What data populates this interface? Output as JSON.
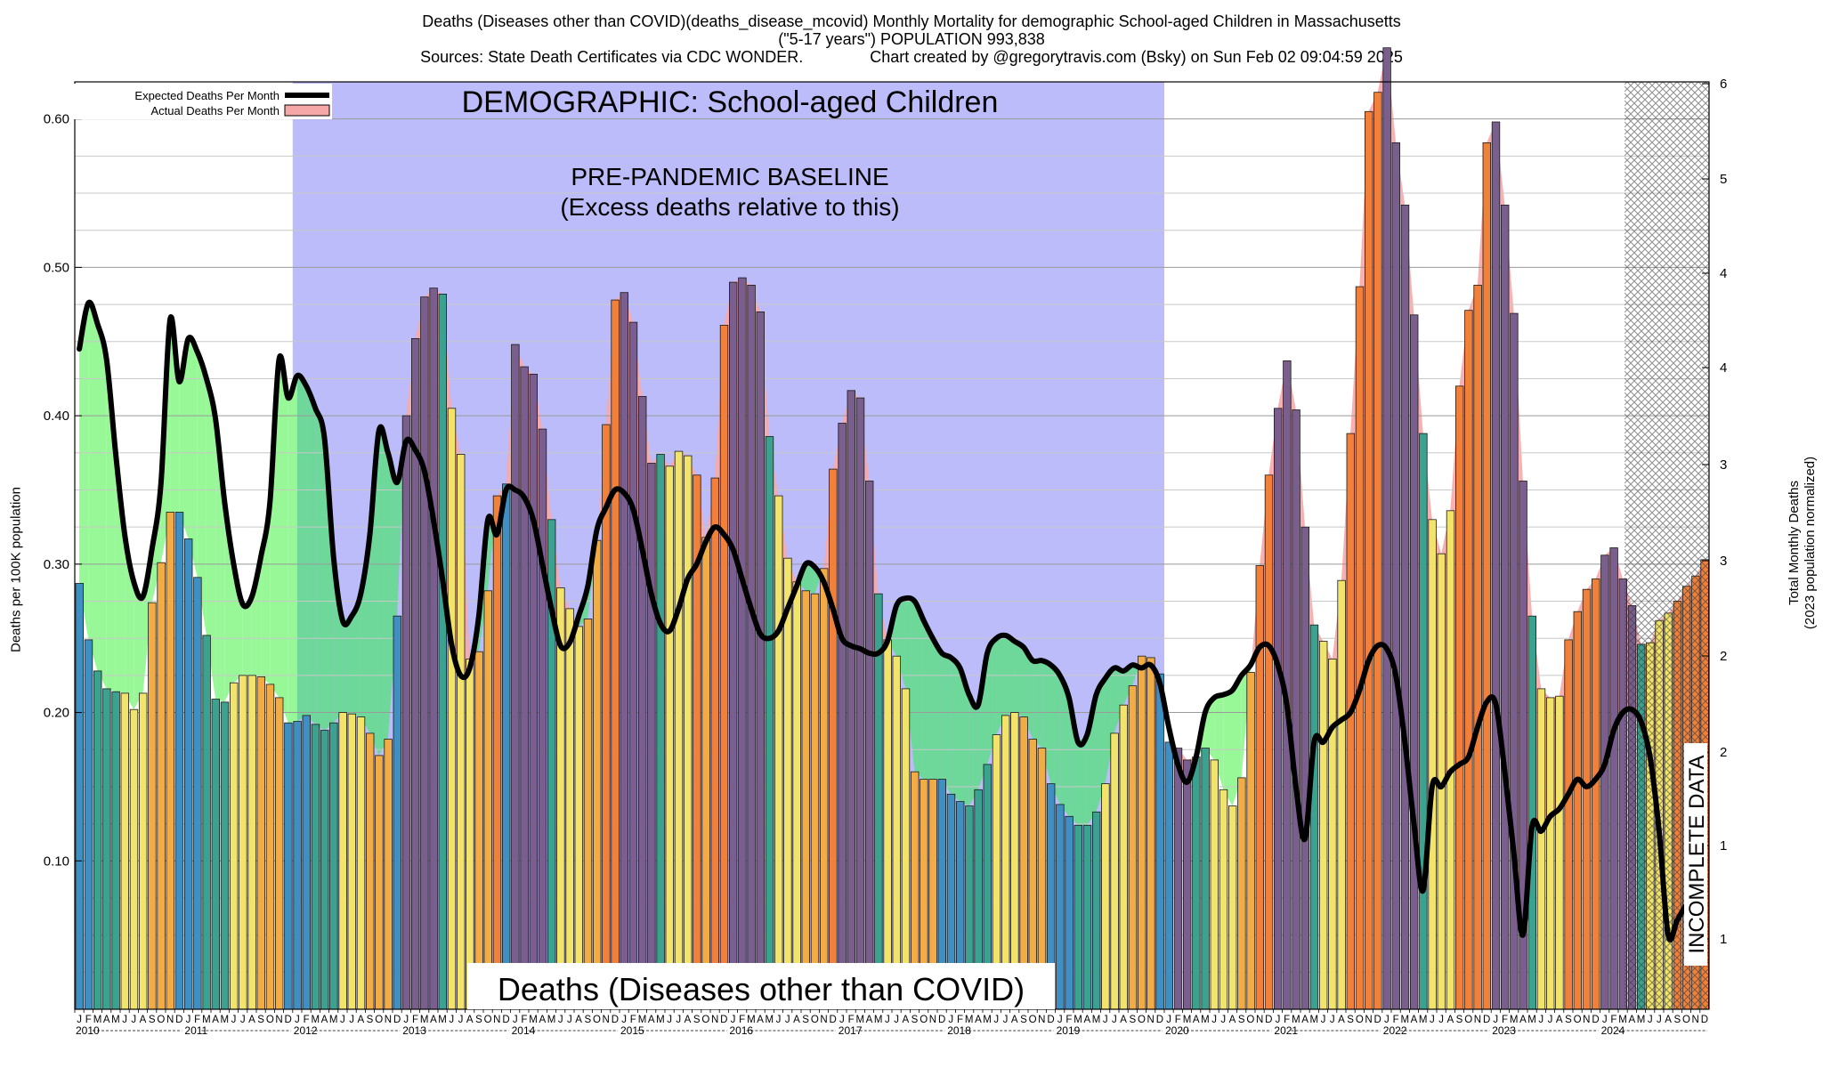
{
  "header": {
    "line1": "Deaths (Diseases other than COVID)(deaths_disease_mcovid) Monthly Mortality for demographic School-aged Children in Massachusetts",
    "line2": "(\"5-17 years\") POPULATION 993,838",
    "line3": "Sources: State Death Certificates via CDC WONDER.               Chart created by @gregorytravis.com (Bsky) on Sun Feb 02 09:04:59 2025"
  },
  "labels": {
    "demographic": "DEMOGRAPHIC: School-aged Children",
    "baseline_line1": "PRE-PANDEMIC BASELINE",
    "baseline_line2": "(Excess deaths relative to this)",
    "bottom_title": "Deaths (Diseases other than COVID)",
    "incomplete": "INCOMPLETE DATA",
    "y_left": "Deaths per 100K population",
    "y_right_line1": "Total Monthly Deaths",
    "y_right_line2": "(2023 population normalized)"
  },
  "legend": {
    "expected": "Expected Deaths Per Month",
    "actual": "Actual Deaths Per Month"
  },
  "colors": {
    "baseline_band": "#bcbcfa",
    "expected_line": "#000000",
    "actual_fill": "#f6a8a8",
    "excess_fill": "#98f898",
    "deficit_fill": "#6ed79a",
    "bar_winter": "#3f8fc3",
    "bar_spring": "#3aa28e",
    "bar_summer": "#f2e36a",
    "bar_fall": "#f2ac46",
    "bar_excess": "#f0803a",
    "bar_overlap": "#7a5f8e"
  },
  "chart_data": {
    "type": "bar",
    "start": "2010-01",
    "end": "2024-12",
    "ylim": [
      0.0,
      0.625
    ],
    "y_left_ticks": [
      "0.10",
      "0.20",
      "0.30",
      "0.40",
      "0.50",
      "0.60"
    ],
    "y_right_ticks": [
      "1",
      "1",
      "2",
      "2",
      "3",
      "3",
      "4",
      "4",
      "5",
      "6"
    ],
    "month_letters": [
      "J",
      "F",
      "M",
      "A",
      "M",
      "J",
      "J",
      "A",
      "S",
      "O",
      "N",
      "D"
    ],
    "years": [
      "2010",
      "2011",
      "2012",
      "2013",
      "2014",
      "2015",
      "2016",
      "2017",
      "2018",
      "2019",
      "2020",
      "2021",
      "2022",
      "2023",
      "2024"
    ],
    "baseline_period": [
      "2012-01",
      "2019-12"
    ],
    "incomplete_period": [
      "2024-04",
      "2024-12"
    ],
    "series": [
      {
        "name": "Actual Deaths Per Month",
        "values": [
          0.287,
          0.249,
          0.228,
          0.216,
          0.214,
          0.213,
          0.202,
          0.213,
          0.274,
          0.301,
          0.335,
          0.335,
          0.317,
          0.291,
          0.252,
          0.209,
          0.207,
          0.22,
          0.225,
          0.225,
          0.224,
          0.219,
          0.21,
          0.193,
          0.194,
          0.198,
          0.192,
          0.188,
          0.193,
          0.2,
          0.199,
          0.197,
          0.186,
          0.171,
          0.182,
          0.265,
          0.4,
          0.452,
          0.48,
          0.486,
          0.482,
          0.405,
          0.374,
          0.236,
          0.241,
          0.282,
          0.346,
          0.354,
          0.448,
          0.433,
          0.428,
          0.391,
          0.33,
          0.284,
          0.27,
          0.258,
          0.263,
          0.316,
          0.394,
          0.478,
          0.483,
          0.463,
          0.413,
          0.368,
          0.374,
          0.366,
          0.376,
          0.373,
          0.36,
          0.318,
          0.358,
          0.461,
          0.49,
          0.493,
          0.488,
          0.47,
          0.386,
          0.346,
          0.304,
          0.288,
          0.282,
          0.28,
          0.297,
          0.364,
          0.395,
          0.417,
          0.412,
          0.356,
          0.28,
          0.249,
          0.238,
          0.216,
          0.16,
          0.155,
          0.155,
          0.155,
          0.145,
          0.14,
          0.137,
          0.148,
          0.165,
          0.185,
          0.198,
          0.2,
          0.197,
          0.182,
          0.176,
          0.152,
          0.138,
          0.13,
          0.124,
          0.124,
          0.133,
          0.152,
          0.186,
          0.205,
          0.218,
          0.238,
          0.237,
          0.226,
          0.18,
          0.176,
          0.168,
          0.17,
          0.176,
          0.168,
          0.148,
          0.137,
          0.156,
          0.227,
          0.299,
          0.36,
          0.405,
          0.437,
          0.404,
          0.325,
          0.259,
          0.248,
          0.236,
          0.289,
          0.388,
          0.487,
          0.605,
          0.618,
          0.648,
          0.584,
          0.542,
          0.468,
          0.388,
          0.33,
          0.307,
          0.336,
          0.42,
          0.471,
          0.488,
          0.584,
          0.598,
          0.542,
          0.469,
          0.356,
          0.265,
          0.216,
          0.21,
          0.211,
          0.249,
          0.268,
          0.283,
          0.29,
          0.306,
          0.311,
          0.29,
          0.272,
          0.246,
          0.247,
          0.262,
          0.267,
          0.275,
          0.285,
          0.292,
          0.303
        ]
      },
      {
        "name": "Expected Deaths Per Month",
        "values": [
          0.445,
          0.476,
          0.462,
          0.438,
          0.375,
          0.32,
          0.288,
          0.278,
          0.31,
          0.355,
          0.465,
          0.423,
          0.452,
          0.443,
          0.425,
          0.398,
          0.342,
          0.3,
          0.273,
          0.278,
          0.305,
          0.342,
          0.438,
          0.412,
          0.427,
          0.42,
          0.405,
          0.385,
          0.305,
          0.262,
          0.265,
          0.28,
          0.32,
          0.39,
          0.375,
          0.355,
          0.383,
          0.377,
          0.363,
          0.33,
          0.29,
          0.246,
          0.225,
          0.23,
          0.265,
          0.33,
          0.32,
          0.35,
          0.35,
          0.345,
          0.33,
          0.3,
          0.27,
          0.245,
          0.247,
          0.265,
          0.285,
          0.323,
          0.338,
          0.35,
          0.348,
          0.337,
          0.31,
          0.28,
          0.26,
          0.255,
          0.27,
          0.29,
          0.3,
          0.315,
          0.325,
          0.32,
          0.31,
          0.29,
          0.27,
          0.253,
          0.25,
          0.255,
          0.27,
          0.285,
          0.3,
          0.298,
          0.288,
          0.27,
          0.25,
          0.245,
          0.243,
          0.24,
          0.24,
          0.248,
          0.272,
          0.277,
          0.275,
          0.262,
          0.25,
          0.24,
          0.237,
          0.23,
          0.212,
          0.205,
          0.24,
          0.25,
          0.252,
          0.248,
          0.244,
          0.235,
          0.235,
          0.232,
          0.225,
          0.21,
          0.18,
          0.185,
          0.212,
          0.223,
          0.23,
          0.228,
          0.232,
          0.23,
          0.232,
          0.22,
          0.19,
          0.165,
          0.153,
          0.17,
          0.2,
          0.21,
          0.212,
          0.215,
          0.225,
          0.232,
          0.244,
          0.245,
          0.232,
          0.205,
          0.15,
          0.115,
          0.18,
          0.18,
          0.19,
          0.195,
          0.2,
          0.215,
          0.235,
          0.245,
          0.243,
          0.225,
          0.18,
          0.125,
          0.08,
          0.15,
          0.15,
          0.16,
          0.165,
          0.17,
          0.19,
          0.207,
          0.206,
          0.16,
          0.105,
          0.05,
          0.123,
          0.12,
          0.13,
          0.135,
          0.145,
          0.155,
          0.15,
          0.155,
          0.165,
          0.188,
          0.2,
          0.202,
          0.194,
          0.17,
          0.12,
          0.05,
          0.06,
          0.07,
          0.07,
          0.07
        ]
      }
    ]
  }
}
